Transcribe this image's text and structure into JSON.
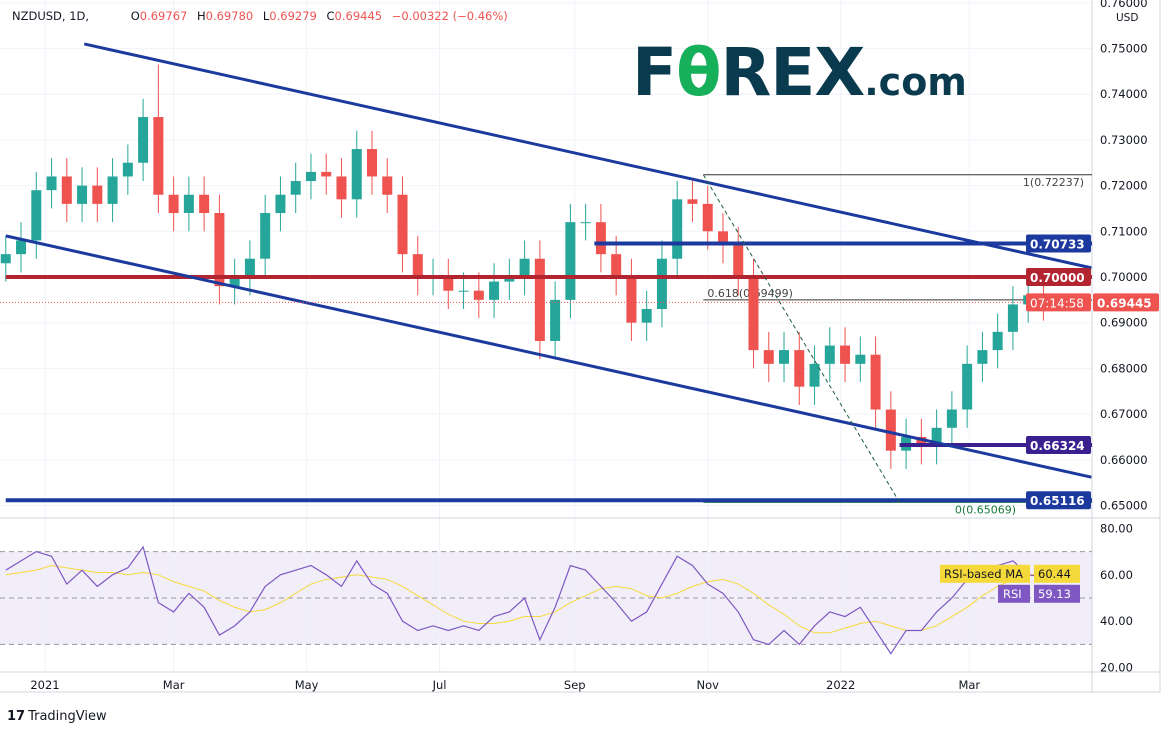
{
  "header": {
    "symbol": "NZDUSD, 1D,",
    "open_label": "O",
    "open": "0.69767",
    "high_label": "H",
    "high": "0.69780",
    "low_label": "L",
    "low": "0.69279",
    "close_label": "C",
    "close": "0.69445",
    "change": "−0.00322 (−0.46%)"
  },
  "logo": {
    "part1": "F",
    "part2": "θ",
    "part3": "REX",
    ".com": ".com",
    "suffix": ".com"
  },
  "footer": {
    "brand": "TradingView",
    "brand_icon": "tradingview-logo-icon"
  },
  "colors": {
    "up": "#26a69a",
    "down": "#ef5350",
    "channel": "#1c3a9e",
    "red_level": "#b2242f",
    "purple_level": "#3a1f8f",
    "rsi": "#7e57c2",
    "rsi_ma": "#f5d93b"
  },
  "chart_data": {
    "type": "candlestick",
    "title": "NZDUSD, 1D",
    "currency": "USD",
    "ylim": [
      0.648,
      0.76
    ],
    "y_ticks": [
      "0.76000",
      "0.75000",
      "0.74000",
      "0.73000",
      "0.72000",
      "0.71000",
      "0.70000",
      "0.69000",
      "0.68000",
      "0.67000",
      "0.66000",
      "0.65000"
    ],
    "x_ticks": [
      {
        "label": "2021",
        "date": "2021-01-01"
      },
      {
        "label": "Mar",
        "date": "2021-03-01"
      },
      {
        "label": "May",
        "date": "2021-05-01"
      },
      {
        "label": "Jul",
        "date": "2021-07-01"
      },
      {
        "label": "Sep",
        "date": "2021-09-01"
      },
      {
        "label": "Nov",
        "date": "2021-11-01"
      },
      {
        "label": "2022",
        "date": "2022-01-01"
      },
      {
        "label": "Mar",
        "date": "2022-03-01"
      }
    ],
    "dates": [
      "2020-12-14",
      "2020-12-21",
      "2020-12-28",
      "2021-01-04",
      "2021-01-11",
      "2021-01-18",
      "2021-01-25",
      "2021-02-01",
      "2021-02-08",
      "2021-02-15",
      "2021-02-22",
      "2021-03-01",
      "2021-03-08",
      "2021-03-15",
      "2021-03-22",
      "2021-03-29",
      "2021-04-05",
      "2021-04-12",
      "2021-04-19",
      "2021-04-26",
      "2021-05-03",
      "2021-05-10",
      "2021-05-17",
      "2021-05-24",
      "2021-05-31",
      "2021-06-07",
      "2021-06-14",
      "2021-06-21",
      "2021-06-28",
      "2021-07-05",
      "2021-07-12",
      "2021-07-19",
      "2021-07-26",
      "2021-08-02",
      "2021-08-09",
      "2021-08-16",
      "2021-08-23",
      "2021-08-30",
      "2021-09-06",
      "2021-09-13",
      "2021-09-20",
      "2021-09-27",
      "2021-10-04",
      "2021-10-11",
      "2021-10-18",
      "2021-10-25",
      "2021-11-01",
      "2021-11-08",
      "2021-11-15",
      "2021-11-22",
      "2021-11-29",
      "2021-12-06",
      "2021-12-13",
      "2021-12-20",
      "2021-12-27",
      "2022-01-03",
      "2022-01-10",
      "2022-01-17",
      "2022-01-24",
      "2022-01-31",
      "2022-02-07",
      "2022-02-14",
      "2022-02-21",
      "2022-02-28",
      "2022-03-07",
      "2022-03-14",
      "2022-03-21",
      "2022-03-28",
      "2022-04-04"
    ],
    "close": [
      0.705,
      0.708,
      0.719,
      0.722,
      0.716,
      0.72,
      0.716,
      0.722,
      0.725,
      0.735,
      0.718,
      0.714,
      0.718,
      0.714,
      0.698,
      0.7,
      0.704,
      0.714,
      0.718,
      0.721,
      0.723,
      0.722,
      0.717,
      0.728,
      0.722,
      0.718,
      0.705,
      0.7,
      0.7,
      0.697,
      0.697,
      0.695,
      0.699,
      0.7,
      0.704,
      0.686,
      0.695,
      0.712,
      0.712,
      0.705,
      0.7,
      0.69,
      0.693,
      0.704,
      0.717,
      0.716,
      0.71,
      0.707,
      0.7,
      0.684,
      0.681,
      0.684,
      0.676,
      0.681,
      0.685,
      0.681,
      0.683,
      0.671,
      0.662,
      0.665,
      0.663,
      0.667,
      0.671,
      0.681,
      0.684,
      0.688,
      0.694,
      0.696,
      0.69445
    ],
    "rsi": [
      62,
      66,
      70,
      68,
      56,
      62,
      55,
      60,
      63,
      72,
      48,
      44,
      52,
      46,
      34,
      38,
      44,
      55,
      60,
      62,
      64,
      60,
      55,
      66,
      56,
      52,
      40,
      36,
      38,
      36,
      38,
      36,
      42,
      44,
      50,
      32,
      46,
      64,
      62,
      55,
      48,
      40,
      44,
      56,
      68,
      64,
      56,
      52,
      44,
      32,
      30,
      36,
      30,
      38,
      44,
      42,
      46,
      36,
      26,
      36,
      36,
      44,
      50,
      58,
      62,
      64,
      66,
      60,
      59.13
    ],
    "rsi_ma": [
      60,
      61,
      62,
      64,
      63,
      62,
      61,
      61,
      60,
      61,
      60,
      57,
      55,
      53,
      49,
      46,
      44,
      45,
      48,
      52,
      56,
      58,
      59,
      60,
      59,
      58,
      55,
      51,
      47,
      43,
      40,
      39,
      39,
      40,
      42,
      42,
      44,
      48,
      51,
      54,
      55,
      54,
      51,
      50,
      52,
      55,
      57,
      58,
      56,
      52,
      47,
      43,
      38,
      35,
      35,
      37,
      39,
      40,
      38,
      36,
      36,
      38,
      42,
      46,
      51,
      55,
      58,
      60,
      60.44
    ],
    "rsi_scale": {
      "ticks": [
        "80.00",
        "60.00",
        "40.00",
        "20.00"
      ],
      "bands": [
        70,
        50,
        30
      ]
    },
    "rsi_labels": {
      "ma_name": "RSI-based MA",
      "ma_value": "60.44",
      "rsi_name": "RSI",
      "rsi_value": "59.13"
    },
    "trendlines": [
      {
        "name": "upper-channel",
        "from": [
          "2021-01-19",
          0.751
        ],
        "to": [
          "2022-04-26",
          0.702
        ]
      },
      {
        "name": "lower-channel",
        "from": [
          "2020-12-14",
          0.709
        ],
        "to": [
          "2022-04-26",
          0.6562
        ]
      },
      {
        "name": "fib-diagonal",
        "from": [
          "2021-10-30",
          0.72237
        ],
        "to": [
          "2022-01-28",
          0.65069
        ]
      }
    ],
    "levels": [
      {
        "price": 0.70733,
        "label": "0.70733",
        "color": "#1c3a9e",
        "from": "2021-09-10"
      },
      {
        "price": 0.7,
        "label": "0.70000",
        "color": "#b2242f",
        "from": "2020-12-14"
      },
      {
        "price": 0.66324,
        "label": "0.66324",
        "color": "#3a1f8f",
        "from": "2022-01-28"
      },
      {
        "price": 0.65116,
        "label": "0.65116",
        "color": "#1c3a9e",
        "from": "2020-12-14"
      }
    ],
    "fib": [
      {
        "label": "1(0.72237)",
        "price": 0.72237
      },
      {
        "label": "0.618(0.69499)",
        "price": 0.69499
      },
      {
        "label": "0(0.65069)",
        "price": 0.65069
      }
    ],
    "last_price": {
      "value": "0.69445",
      "countdown": "07:14:58"
    }
  }
}
